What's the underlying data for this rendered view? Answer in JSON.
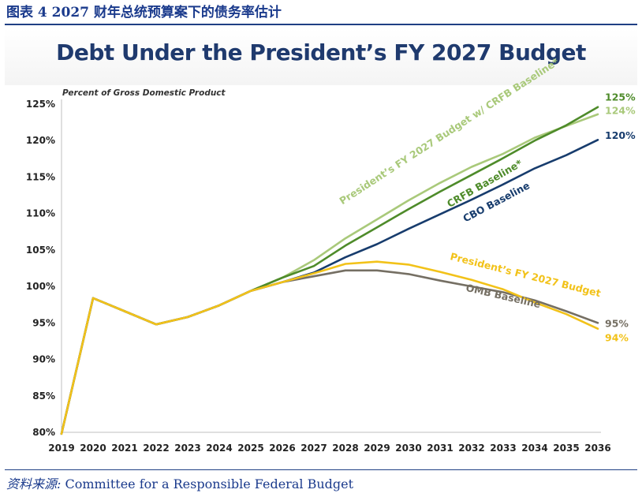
{
  "header": {
    "figure_title": "图表 4   2027 财年总统预算案下的债务率估计"
  },
  "source": {
    "label": "资料来源:",
    "text": " Committee for a Responsible Federal Budget"
  },
  "chart_data": {
    "type": "line",
    "title": "Debt Under the President’s FY 2027 Budget",
    "ylabel": "Percent of Gross Domestic Product",
    "xlabel": "",
    "ylim": [
      80,
      125
    ],
    "yticks": [
      80,
      85,
      90,
      95,
      100,
      105,
      110,
      115,
      120,
      125
    ],
    "ytick_labels": [
      "80%",
      "85%",
      "90%",
      "95%",
      "100%",
      "105%",
      "110%",
      "115%",
      "120%",
      "125%"
    ],
    "x": [
      2019,
      2020,
      2021,
      2022,
      2023,
      2024,
      2025,
      2026,
      2027,
      2028,
      2029,
      2030,
      2031,
      2032,
      2033,
      2034,
      2035,
      2036
    ],
    "xtick_labels": [
      "2019",
      "2020",
      "2021",
      "2022",
      "2023",
      "2024",
      "2025",
      "2026",
      "2027",
      "2028",
      "2029",
      "2030",
      "2031",
      "2032",
      "2033",
      "2034",
      "2035",
      "2036"
    ],
    "grid": false,
    "series": [
      {
        "name": "President’s FY 2027 Budget w/ CRFB Baseline*",
        "color": "#a9c97a",
        "end_label": "124%",
        "values": [
          79.8,
          98.4,
          96.6,
          94.8,
          95.8,
          97.4,
          99.4,
          101.2,
          103.6,
          106.6,
          109.2,
          111.8,
          114.2,
          116.4,
          118.2,
          120.4,
          122.0,
          123.6
        ]
      },
      {
        "name": "CRFB Baseline*",
        "color": "#4e8b2a",
        "end_label": "125%",
        "values": [
          79.8,
          98.4,
          96.6,
          94.8,
          95.8,
          97.4,
          99.4,
          101.2,
          102.8,
          105.6,
          108.1,
          110.6,
          113.0,
          115.3,
          117.6,
          120.0,
          122.1,
          124.6
        ]
      },
      {
        "name": "CBO Baseline",
        "color": "#173c6d",
        "end_label": "120%",
        "values": [
          79.8,
          98.4,
          96.6,
          94.8,
          95.8,
          97.4,
          99.4,
          100.6,
          101.9,
          104.0,
          105.8,
          107.9,
          109.9,
          111.9,
          114.0,
          116.2,
          118.0,
          120.1
        ]
      },
      {
        "name": "President’s FY 2027 Budget",
        "color": "#f2c219",
        "end_label": "94%",
        "values": [
          79.8,
          98.4,
          96.6,
          94.8,
          95.8,
          97.4,
          99.4,
          100.6,
          101.8,
          103.1,
          103.4,
          103.0,
          102.0,
          100.9,
          99.6,
          97.8,
          96.2,
          94.2
        ]
      },
      {
        "name": "OMB Baseline",
        "color": "#756f63",
        "end_label": "95%",
        "values": [
          79.8,
          98.4,
          96.6,
          94.8,
          95.8,
          97.4,
          99.4,
          100.6,
          101.4,
          102.2,
          102.2,
          101.7,
          100.8,
          100.0,
          99.2,
          98.1,
          96.6,
          95.0
        ]
      }
    ]
  }
}
